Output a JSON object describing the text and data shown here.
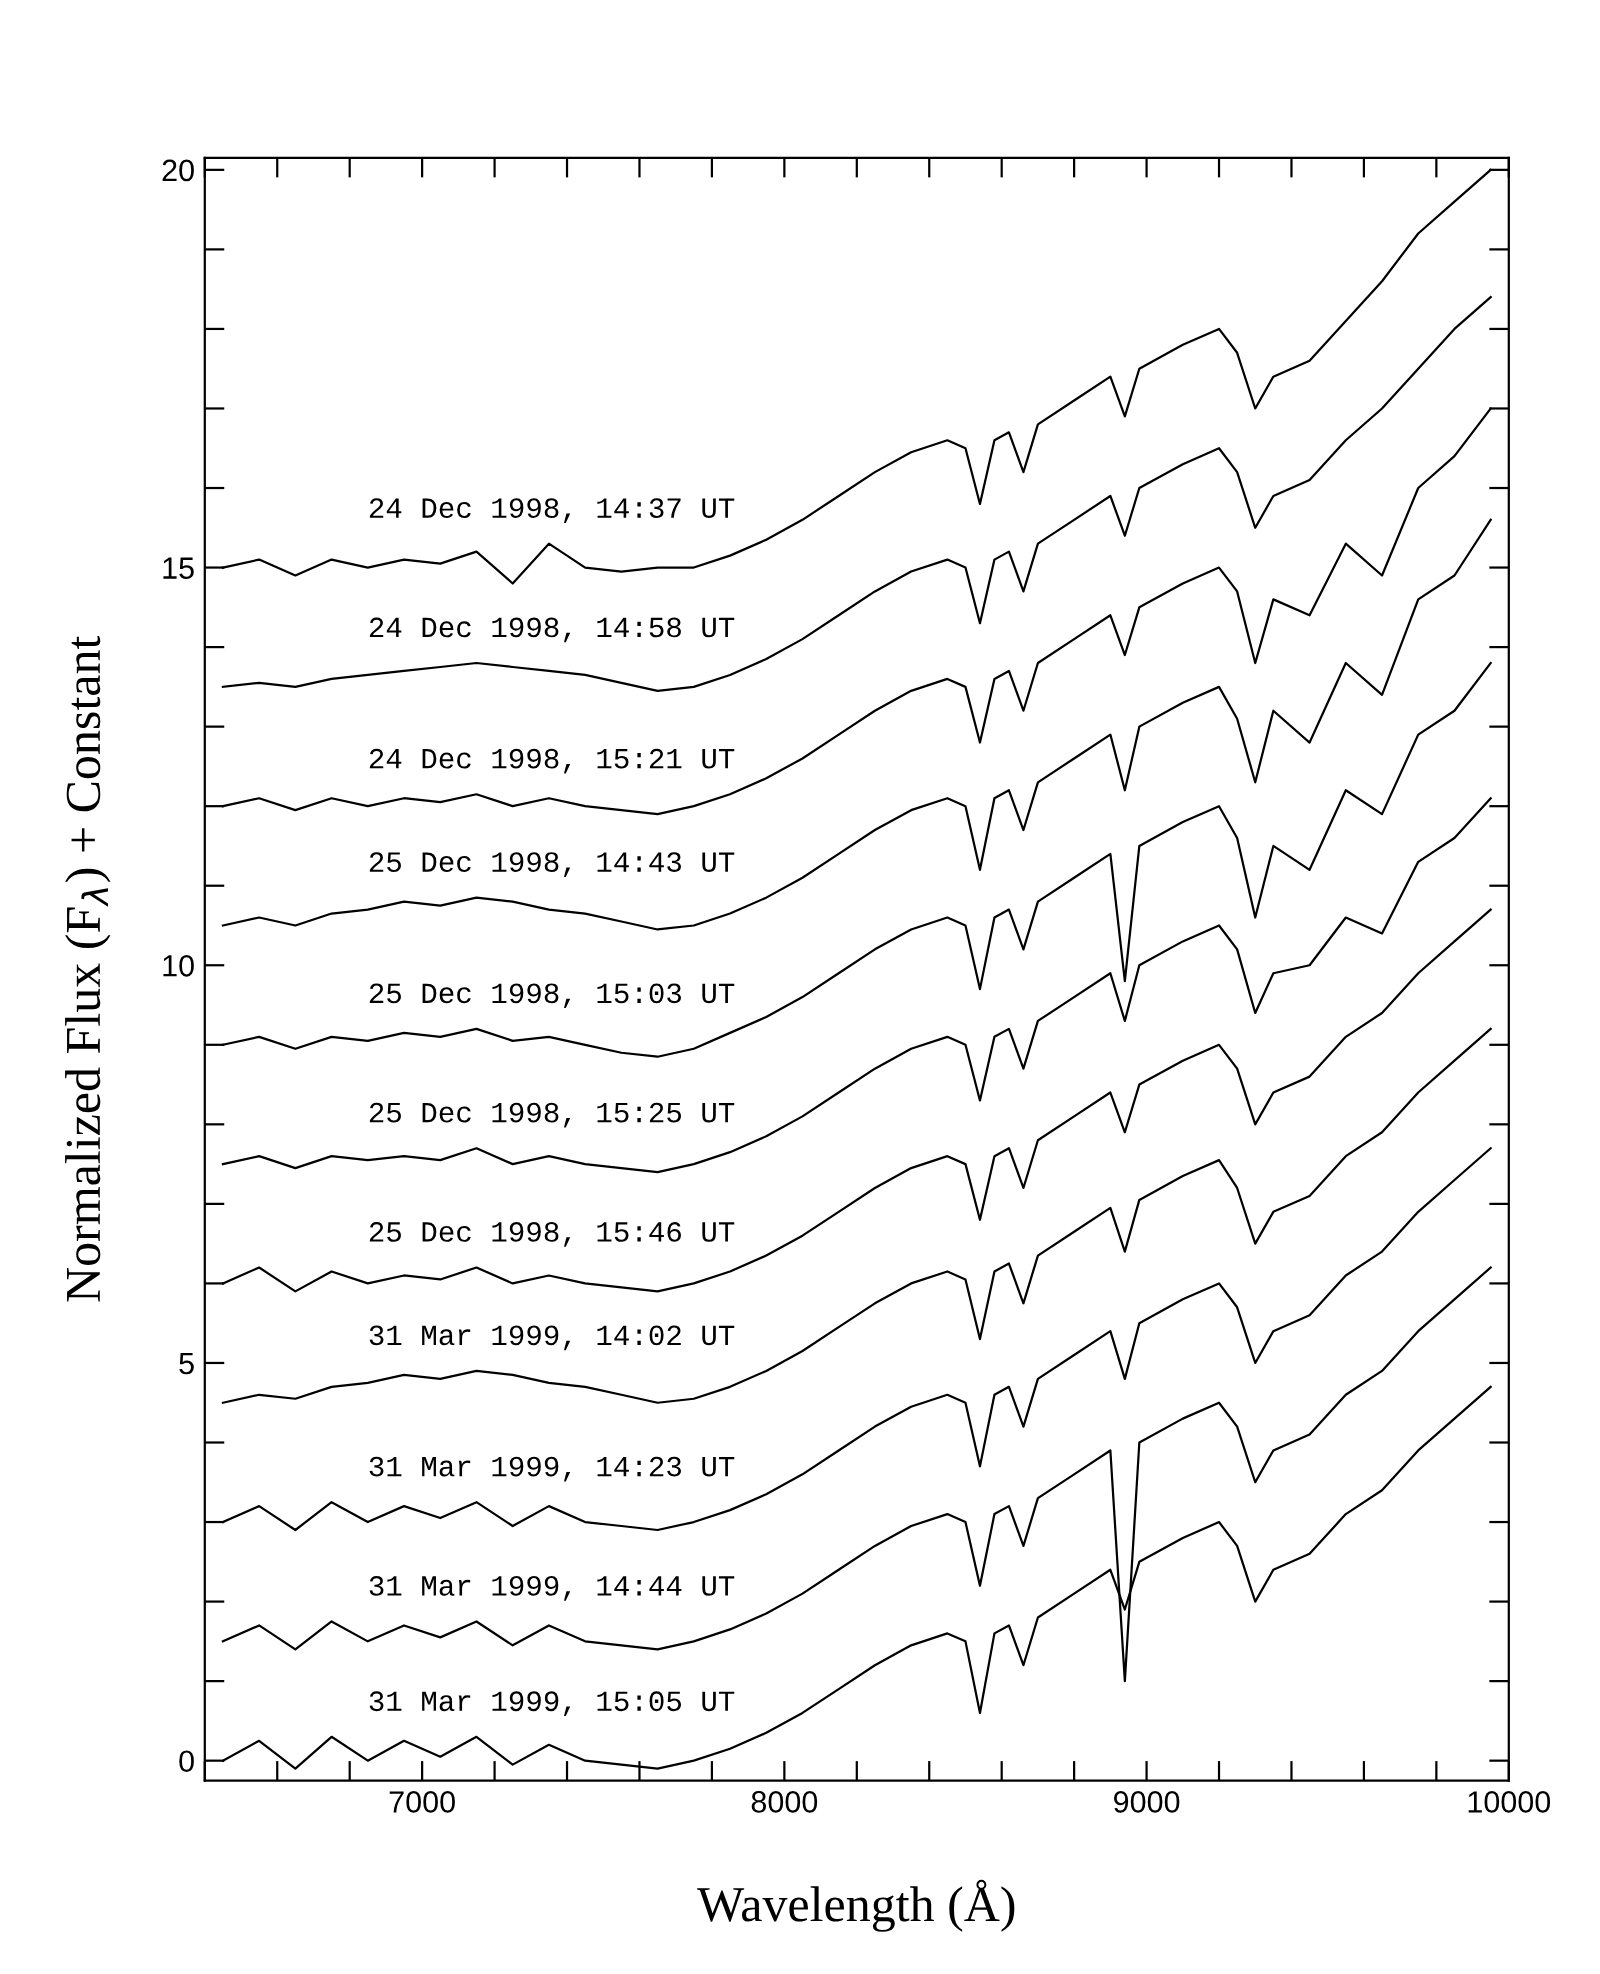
{
  "chart_data": {
    "type": "line",
    "xlabel": "Wavelength (Å)",
    "ylabel": "Normalized Flux (F$_{λ}$) + Constant",
    "x": [
      6450,
      6550,
      6650,
      6750,
      6850,
      6950,
      7050,
      7150,
      7250,
      7350,
      7450,
      7550,
      7650,
      7750,
      7850,
      7950,
      8050,
      8150,
      8250,
      8350,
      8450,
      8500,
      8540,
      8580,
      8620,
      8660,
      8700,
      8800,
      8900,
      8940,
      8980,
      9100,
      9200,
      9250,
      9300,
      9350,
      9450,
      9550,
      9650,
      9750,
      9850,
      9950
    ],
    "xlim": [
      6400,
      10000
    ],
    "ylim": [
      -0.25,
      20.15
    ],
    "xticks": [
      {
        "value": 6400,
        "label": null
      },
      {
        "value": 6600,
        "label": null
      },
      {
        "value": 6800,
        "label": null
      },
      7000,
      {
        "value": 7200,
        "label": null
      },
      {
        "value": 7400,
        "label": null
      },
      {
        "value": 7600,
        "label": null
      },
      {
        "value": 7800,
        "label": null
      },
      8000,
      {
        "value": 8200,
        "label": null
      },
      {
        "value": 8400,
        "label": null
      },
      {
        "value": 8600,
        "label": null
      },
      {
        "value": 8800,
        "label": null
      },
      9000,
      {
        "value": 9200,
        "label": null
      },
      {
        "value": 9400,
        "label": null
      },
      {
        "value": 9600,
        "label": null
      },
      {
        "value": 9800,
        "label": null
      },
      10000
    ],
    "yticks": [
      0,
      {
        "value": 1,
        "label": null
      },
      {
        "value": 2,
        "label": null
      },
      {
        "value": 3,
        "label": null
      },
      {
        "value": 4,
        "label": null
      },
      5,
      {
        "value": 6,
        "label": null
      },
      {
        "value": 7,
        "label": null
      },
      {
        "value": 8,
        "label": null
      },
      {
        "value": 9,
        "label": null
      },
      10,
      {
        "value": 11,
        "label": null
      },
      {
        "value": 12,
        "label": null
      },
      {
        "value": 13,
        "label": null
      },
      {
        "value": 14,
        "label": null
      },
      15,
      {
        "value": 16,
        "label": null
      },
      {
        "value": 17,
        "label": null
      },
      {
        "value": 18,
        "label": null
      },
      {
        "value": 19,
        "label": null
      },
      20
    ],
    "grid": false,
    "legend": false,
    "marker": "none",
    "line_style": "solid",
    "series": [
      {
        "name": "24 Dec 1998, 14:37 UT",
        "color": "#000000",
        "values": [
          15.0,
          15.1,
          14.9,
          15.1,
          15.0,
          15.1,
          15.05,
          15.2,
          14.8,
          15.3,
          15.0,
          14.95,
          15.0,
          15.0,
          15.15,
          15.35,
          15.6,
          15.9,
          16.2,
          16.45,
          16.6,
          16.5,
          15.8,
          16.6,
          16.7,
          16.2,
          16.8,
          17.1,
          17.4,
          16.9,
          17.5,
          17.8,
          18.0,
          17.7,
          17.0,
          17.4,
          17.6,
          18.1,
          18.6,
          19.2,
          19.6,
          20.0
        ]
      },
      {
        "name": "24 Dec 1998, 14:58 UT",
        "color": "#000000",
        "values": [
          13.5,
          13.55,
          13.5,
          13.6,
          13.65,
          13.7,
          13.75,
          13.8,
          13.75,
          13.7,
          13.65,
          13.55,
          13.45,
          13.5,
          13.65,
          13.85,
          14.1,
          14.4,
          14.7,
          14.95,
          15.1,
          15.0,
          14.3,
          15.1,
          15.2,
          14.7,
          15.3,
          15.6,
          15.9,
          15.4,
          16.0,
          16.3,
          16.5,
          16.2,
          15.5,
          15.9,
          16.1,
          16.6,
          17.0,
          17.5,
          18.0,
          18.4
        ]
      },
      {
        "name": "24 Dec 1998, 15:21 UT",
        "color": "#000000",
        "values": [
          12.0,
          12.1,
          11.95,
          12.1,
          12.0,
          12.1,
          12.05,
          12.15,
          12.0,
          12.1,
          12.0,
          11.95,
          11.9,
          12.0,
          12.15,
          12.35,
          12.6,
          12.9,
          13.2,
          13.45,
          13.6,
          13.5,
          12.8,
          13.6,
          13.7,
          13.2,
          13.8,
          14.1,
          14.4,
          13.9,
          14.5,
          14.8,
          15.0,
          14.7,
          13.8,
          14.6,
          14.4,
          15.3,
          14.9,
          16.0,
          16.4,
          17.0
        ]
      },
      {
        "name": "25 Dec 1998, 14:43 UT",
        "color": "#000000",
        "values": [
          10.5,
          10.6,
          10.5,
          10.65,
          10.7,
          10.8,
          10.75,
          10.85,
          10.8,
          10.7,
          10.65,
          10.55,
          10.45,
          10.5,
          10.65,
          10.85,
          11.1,
          11.4,
          11.7,
          11.95,
          12.1,
          12.0,
          11.2,
          12.1,
          12.2,
          11.7,
          12.3,
          12.6,
          12.9,
          12.2,
          13.0,
          13.3,
          13.5,
          13.1,
          12.3,
          13.2,
          12.8,
          13.8,
          13.4,
          14.6,
          14.9,
          15.6
        ]
      },
      {
        "name": "25 Dec 1998, 15:03 UT",
        "color": "#000000",
        "values": [
          9.0,
          9.1,
          8.95,
          9.1,
          9.05,
          9.15,
          9.1,
          9.2,
          9.05,
          9.1,
          9.0,
          8.9,
          8.85,
          8.95,
          9.15,
          9.35,
          9.6,
          9.9,
          10.2,
          10.45,
          10.6,
          10.5,
          9.7,
          10.6,
          10.7,
          10.2,
          10.8,
          11.1,
          11.4,
          9.8,
          11.5,
          11.8,
          12.0,
          11.6,
          10.6,
          11.5,
          11.2,
          12.2,
          11.9,
          12.9,
          13.2,
          13.8
        ]
      },
      {
        "name": "25 Dec 1998, 15:25 UT",
        "color": "#000000",
        "values": [
          7.5,
          7.6,
          7.45,
          7.6,
          7.55,
          7.6,
          7.55,
          7.7,
          7.5,
          7.6,
          7.5,
          7.45,
          7.4,
          7.5,
          7.65,
          7.85,
          8.1,
          8.4,
          8.7,
          8.95,
          9.1,
          9.0,
          8.3,
          9.1,
          9.2,
          8.7,
          9.3,
          9.6,
          9.9,
          9.3,
          10.0,
          10.3,
          10.5,
          10.2,
          9.4,
          9.9,
          10.0,
          10.6,
          10.4,
          11.3,
          11.6,
          12.1
        ]
      },
      {
        "name": "25 Dec 1998, 15:46 UT",
        "color": "#000000",
        "values": [
          6.0,
          6.2,
          5.9,
          6.15,
          6.0,
          6.1,
          6.05,
          6.2,
          6.0,
          6.1,
          6.0,
          5.95,
          5.9,
          6.0,
          6.15,
          6.35,
          6.6,
          6.9,
          7.2,
          7.45,
          7.6,
          7.5,
          6.8,
          7.6,
          7.7,
          7.2,
          7.8,
          8.1,
          8.4,
          7.9,
          8.5,
          8.8,
          9.0,
          8.7,
          8.0,
          8.4,
          8.6,
          9.1,
          9.4,
          9.9,
          10.3,
          10.7
        ]
      },
      {
        "name": "31 Mar 1999, 14:02 UT",
        "color": "#000000",
        "values": [
          4.5,
          4.6,
          4.55,
          4.7,
          4.75,
          4.85,
          4.8,
          4.9,
          4.85,
          4.75,
          4.7,
          4.6,
          4.5,
          4.55,
          4.7,
          4.9,
          5.15,
          5.45,
          5.75,
          6.0,
          6.15,
          6.05,
          5.3,
          6.15,
          6.25,
          5.75,
          6.35,
          6.65,
          6.95,
          6.4,
          7.05,
          7.35,
          7.55,
          7.2,
          6.5,
          6.9,
          7.1,
          7.6,
          7.9,
          8.4,
          8.8,
          9.2
        ]
      },
      {
        "name": "31 Mar 1999, 14:23 UT",
        "color": "#000000",
        "values": [
          3.0,
          3.2,
          2.9,
          3.25,
          3.0,
          3.2,
          3.05,
          3.25,
          2.95,
          3.2,
          3.0,
          2.95,
          2.9,
          3.0,
          3.15,
          3.35,
          3.6,
          3.9,
          4.2,
          4.45,
          4.6,
          4.5,
          3.7,
          4.6,
          4.7,
          4.2,
          4.8,
          5.1,
          5.4,
          4.8,
          5.5,
          5.8,
          6.0,
          5.7,
          5.0,
          5.4,
          5.6,
          6.1,
          6.4,
          6.9,
          7.3,
          7.7
        ]
      },
      {
        "name": "31 Mar 1999, 14:44 UT",
        "color": "#000000",
        "values": [
          1.5,
          1.7,
          1.4,
          1.75,
          1.5,
          1.7,
          1.55,
          1.75,
          1.45,
          1.7,
          1.5,
          1.45,
          1.4,
          1.5,
          1.65,
          1.85,
          2.1,
          2.4,
          2.7,
          2.95,
          3.1,
          3.0,
          2.2,
          3.1,
          3.2,
          2.7,
          3.3,
          3.6,
          3.9,
          1.0,
          4.0,
          4.3,
          4.5,
          4.2,
          3.5,
          3.9,
          4.1,
          4.6,
          4.9,
          5.4,
          5.8,
          6.2
        ]
      },
      {
        "name": "31 Mar 1999, 15:05 UT",
        "color": "#000000",
        "values": [
          0.0,
          0.25,
          -0.1,
          0.3,
          0.0,
          0.25,
          0.05,
          0.3,
          -0.05,
          0.2,
          0.0,
          -0.05,
          -0.1,
          0.0,
          0.15,
          0.35,
          0.6,
          0.9,
          1.2,
          1.45,
          1.6,
          1.5,
          0.6,
          1.6,
          1.7,
          1.2,
          1.8,
          2.1,
          2.4,
          1.9,
          2.5,
          2.8,
          3.0,
          2.7,
          2.0,
          2.4,
          2.6,
          3.1,
          3.4,
          3.9,
          4.3,
          4.7
        ]
      }
    ]
  }
}
